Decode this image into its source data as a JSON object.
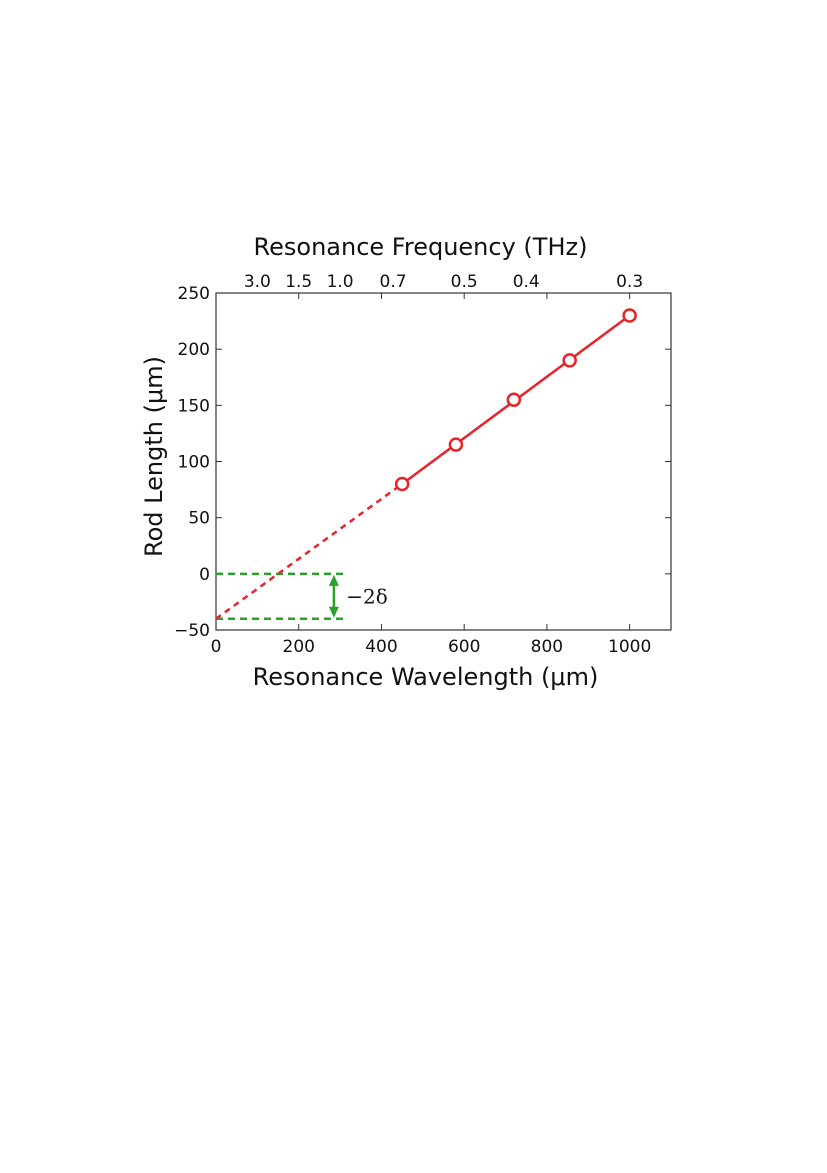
{
  "chart_data": {
    "type": "scatter",
    "xlabel": "Resonance Wavelength (μm)",
    "ylabel": "Rod Length (μm)",
    "top_xlabel": "Resonance Frequency (THz)",
    "xlim": [
      0,
      1100
    ],
    "ylim": [
      -50,
      250
    ],
    "x_ticks": [
      0,
      200,
      400,
      600,
      800,
      1000
    ],
    "y_ticks": [
      -50,
      0,
      50,
      100,
      150,
      200,
      250
    ],
    "y_tick_labels": [
      "−50",
      "0",
      "50",
      "100",
      "150",
      "200",
      "250"
    ],
    "top_ticks": [
      {
        "label": "3.0",
        "wavelength": 100
      },
      {
        "label": "1.5",
        "wavelength": 200
      },
      {
        "label": "1.0",
        "wavelength": 300
      },
      {
        "label": "0.7",
        "wavelength": 428
      },
      {
        "label": "0.5",
        "wavelength": 600
      },
      {
        "label": "0.4",
        "wavelength": 750
      },
      {
        "label": "0.3",
        "wavelength": 1000
      }
    ],
    "grid": false,
    "series": [
      {
        "x": [
          450,
          580,
          720,
          855,
          1000
        ],
        "y": [
          80,
          115,
          155,
          190,
          230
        ],
        "color": "#e8232a",
        "marker": "open-circle"
      }
    ],
    "fit_line": {
      "x": [
        450,
        1000
      ],
      "y": [
        80,
        230
      ],
      "color": "#e8232a",
      "style": "solid"
    },
    "extrapolation": {
      "x": [
        0,
        450
      ],
      "y": [
        -40,
        80
      ],
      "color": "#e8232a",
      "style": "dashed"
    },
    "reference_lines": [
      {
        "y": 0,
        "x_range": [
          0,
          310
        ],
        "color": "#2ca02c",
        "style": "dashed"
      },
      {
        "y": -40,
        "x_range": [
          0,
          310
        ],
        "color": "#2ca02c",
        "style": "dashed"
      }
    ],
    "arrow": {
      "x": 285,
      "y_from": 0,
      "y_to": -40,
      "color": "#2ca02c"
    },
    "annotation": {
      "text": "−2δ",
      "x": 310,
      "y": -20
    }
  }
}
